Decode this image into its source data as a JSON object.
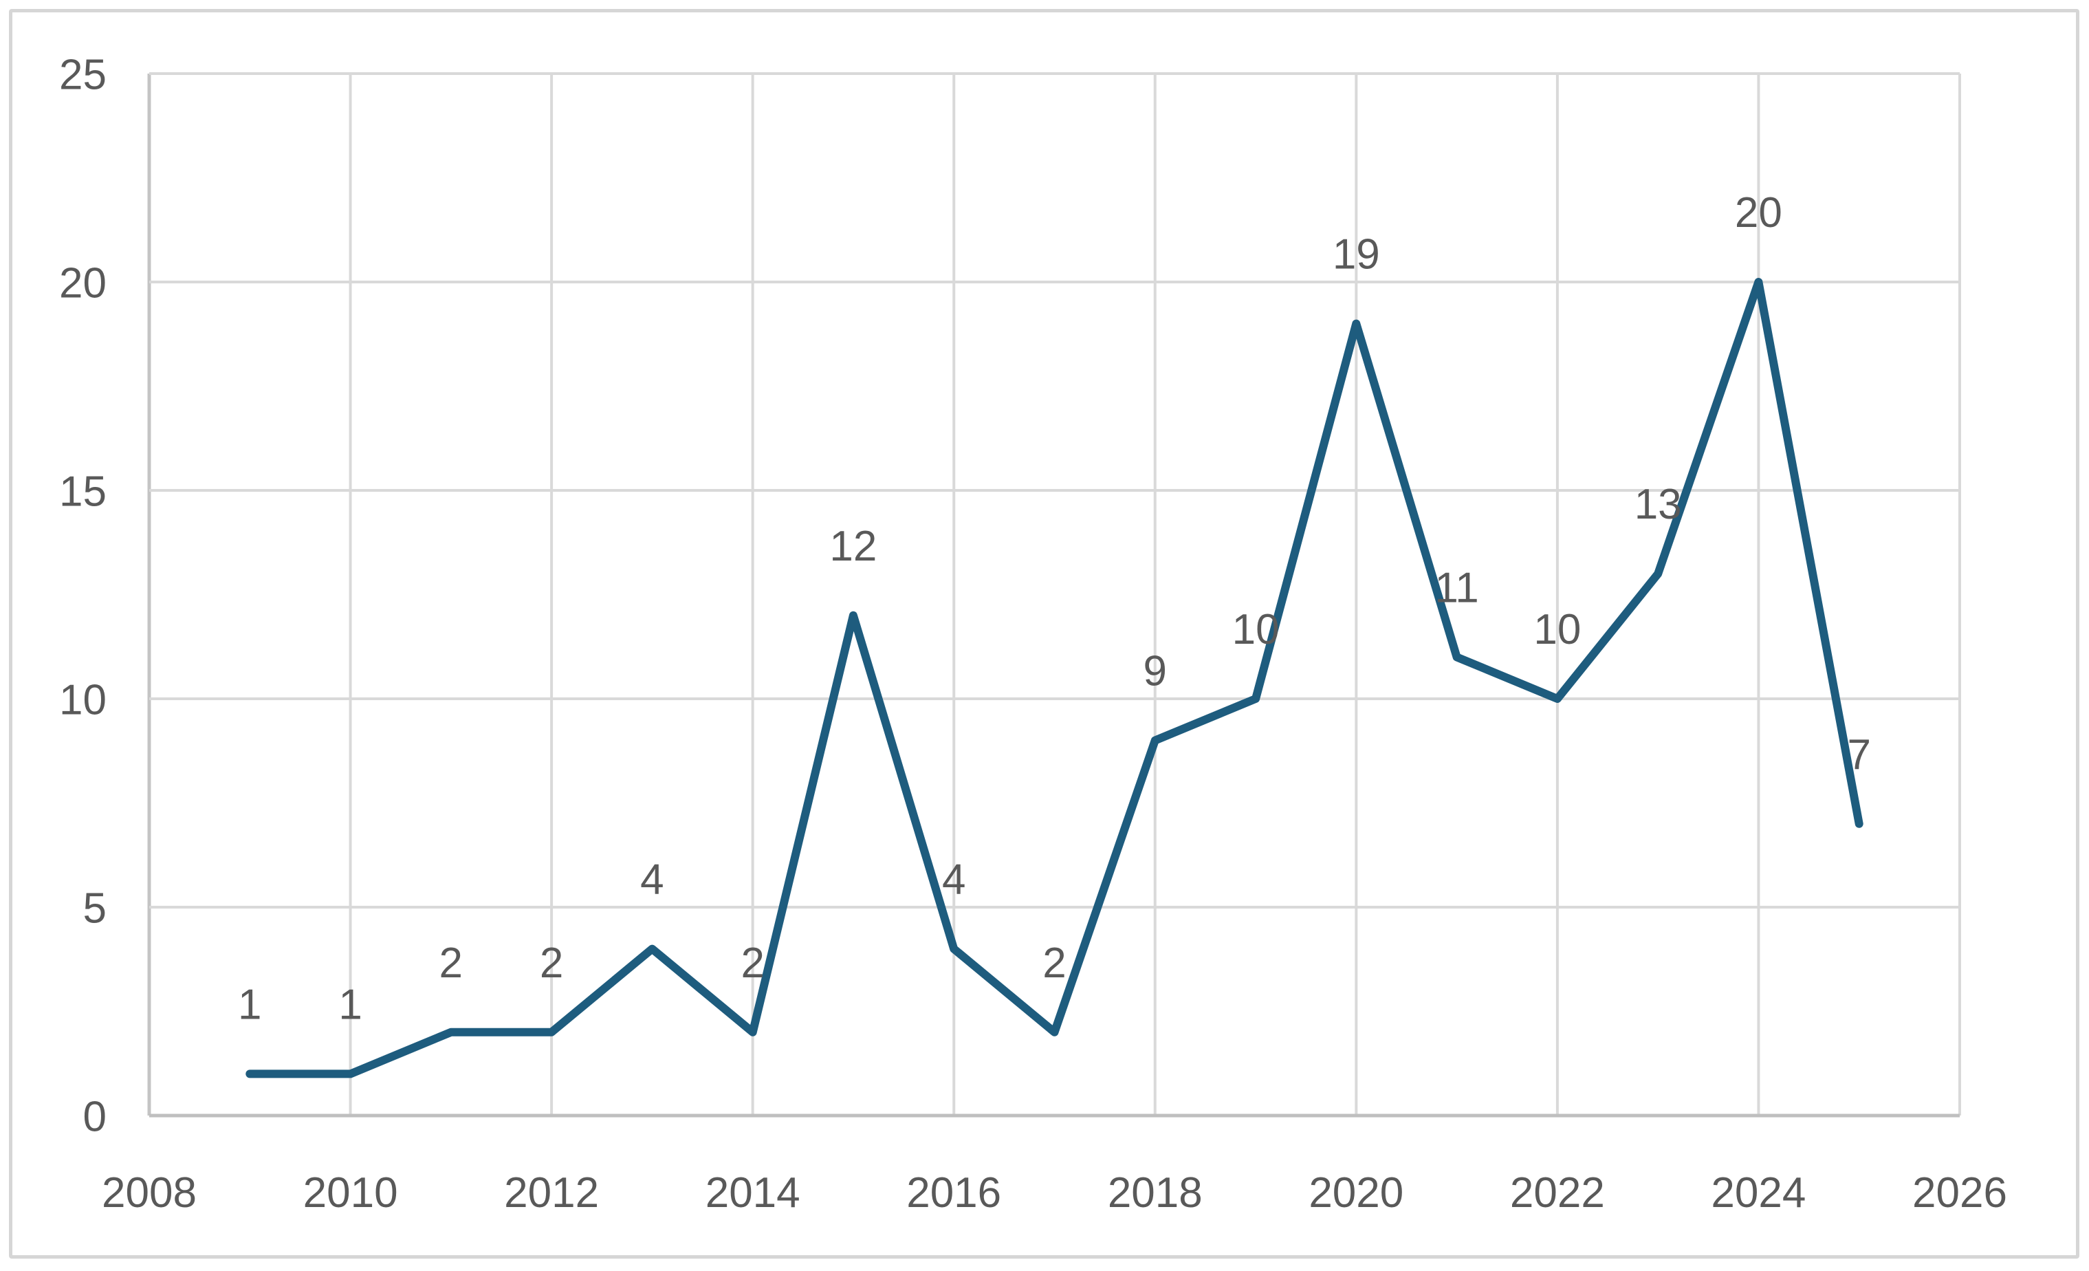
{
  "chart": {
    "title": "",
    "background": "#FFFFFF",
    "frame_border_color": "#D6D6D6"
  },
  "chart_data": {
    "type": "line",
    "title": "",
    "xlabel": "",
    "ylabel": "",
    "x": [
      2009,
      2010,
      2011,
      2012,
      2013,
      2014,
      2015,
      2016,
      2017,
      2018,
      2019,
      2020,
      2021,
      2022,
      2023,
      2024,
      2025
    ],
    "values": [
      1,
      1,
      2,
      2,
      4,
      2,
      12,
      4,
      2,
      9,
      10,
      19,
      11,
      10,
      13,
      20,
      7
    ],
    "data_labels_shown": true,
    "data_labels": [
      "1",
      "1",
      "2",
      "2",
      "4",
      "2",
      "12",
      "4",
      "2",
      "9",
      "10",
      "19",
      "11",
      "10",
      "13",
      "20",
      "7"
    ],
    "xlim": [
      2008,
      2026
    ],
    "ylim": [
      0,
      25
    ],
    "x_ticks": [
      "2008",
      "2010",
      "2012",
      "2014",
      "2016",
      "2018",
      "2020",
      "2022",
      "2024",
      "2026"
    ],
    "y_ticks": [
      "0",
      "5",
      "10",
      "15",
      "20",
      "25"
    ],
    "grid": true,
    "legend": false,
    "line_color": "#1E5C7E",
    "gridline_color": "#D9D9D9",
    "x_axis_line_color": "#BFBFBF",
    "y_axis_line_color": "#C4C4C4",
    "tick_label_color": "#595959",
    "data_label_color": "#595959"
  }
}
